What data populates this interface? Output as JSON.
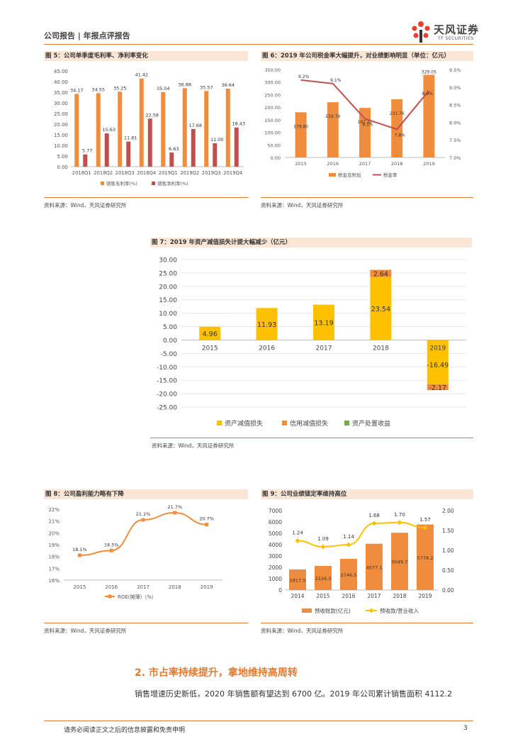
{
  "header": {
    "left": "公司报告 | 年报点评报告",
    "brand_cn": "天风证券",
    "brand_en": "TF SECURITIES"
  },
  "fig5": {
    "title": "图 5：公司单季度毛利率、净利率变化",
    "source": "资料来源：Wind，天风证券研究所",
    "chart_data": {
      "type": "bar",
      "categories": [
        "2018Q1",
        "2018Q2",
        "2018Q3",
        "2018Q4",
        "2019Q1",
        "2019Q2",
        "2019Q3",
        "2019Q4"
      ],
      "series": [
        {
          "name": "销售毛利率(%)",
          "values": [
            34.17,
            34.55,
            35.25,
            41.42,
            35.04,
            36.88,
            35.57,
            36.64
          ],
          "color": "#f08c3c"
        },
        {
          "name": "销售净利率(%)",
          "values": [
            5.77,
            15.63,
            11.81,
            22.58,
            6.63,
            17.68,
            11.0,
            18.43
          ],
          "color": "#c0504d"
        }
      ],
      "labels": [
        [
          "34.17",
          "34.55",
          "35.25",
          "41.42",
          "35.04",
          "36.88",
          "35.57",
          "36.64"
        ],
        [
          "5.77",
          "15.63",
          "11.81",
          "22.58",
          "6.63",
          "17.68",
          "11.00",
          "18.43"
        ]
      ],
      "yticks": [
        "0.00",
        "5.00",
        "10.00",
        "15.00",
        "20.00",
        "25.00",
        "30.00",
        "35.00",
        "40.00",
        "45.00"
      ],
      "ylim": [
        0,
        45
      ]
    }
  },
  "fig6": {
    "title": "图 6：2019 年公司税金率大幅提升，对业绩影响明显（单位：亿元）",
    "source": "资料来源：Wind，天风证券研究所",
    "chart_data": {
      "type": "bar",
      "categories": [
        "2015",
        "2016",
        "2017",
        "2018",
        "2019"
      ],
      "bars": {
        "name": "税金及附加",
        "values": [
          179.8,
          219.79,
          197.22,
          231.76,
          329.05
        ],
        "color": "#f08c3c"
      },
      "bar_labels": [
        "179.80",
        "219.79",
        "197.22",
        "231.76",
        "329.05"
      ],
      "line": {
        "name": "税金率",
        "values": [
          9.2,
          9.1,
          8.1,
          7.8,
          8.9
        ],
        "color": "#c0504d"
      },
      "line_labels": [
        "9.2%",
        "9.1%",
        "8.1%",
        "7.8%",
        "8.9%"
      ],
      "yticks": [
        "0.00",
        "50.00",
        "100.00",
        "150.00",
        "200.00",
        "250.00",
        "300.00",
        "350.00"
      ],
      "ylim": [
        0,
        350
      ],
      "y2ticks": [
        "7.0%",
        "7.5%",
        "8.0%",
        "8.5%",
        "9.0%",
        "9.5%"
      ],
      "y2lim": [
        7.0,
        9.5
      ]
    }
  },
  "fig7": {
    "title": "图 7：2019 年资产减值损失计提大幅减少（亿元）",
    "source": "资料来源：Wind，天风证券研究所",
    "chart_data": {
      "type": "bar",
      "categories": [
        "2015",
        "2016",
        "2017",
        "2018",
        "2019"
      ],
      "series": [
        {
          "name": "资产减值损失",
          "values": [
            4.96,
            11.93,
            13.19,
            23.54,
            -16.49
          ],
          "color": "#ffc000"
        },
        {
          "name": "信用减值损失",
          "values": [
            0,
            0,
            0,
            2.64,
            -2.17
          ],
          "color": "#f08c3c"
        },
        {
          "name": "资产处置收益",
          "values": [
            0,
            0,
            0,
            0,
            0
          ],
          "color": "#70ad47"
        }
      ],
      "labels_s1": [
        "4.96",
        "11.93",
        "13.19",
        "23.54",
        "-16.49"
      ],
      "labels_s2": [
        "",
        "",
        "",
        "2.64",
        "-2.17"
      ],
      "yticks": [
        "-25.00",
        "-20.00",
        "-15.00",
        "-10.00",
        "-5.00",
        "0.00",
        "5.00",
        "10.00",
        "15.00",
        "20.00",
        "25.00",
        "30.00"
      ],
      "ylim": [
        -25,
        30
      ]
    }
  },
  "fig8": {
    "title": "图 8：公司盈利能力略有下降",
    "source": "资料来源：Wind，天风证券研究所",
    "chart_data": {
      "type": "line",
      "categories": [
        "2015",
        "2016",
        "2017",
        "2018",
        "2019"
      ],
      "series": [
        {
          "name": "ROE(摊薄)（%）",
          "values": [
            18.1,
            18.5,
            21.1,
            21.7,
            20.7
          ],
          "color": "#f08c3c"
        }
      ],
      "labels": [
        "18.1%",
        "18.5%",
        "21.1%",
        "21.7%",
        "20.7%"
      ],
      "yticks": [
        "16%",
        "17%",
        "18%",
        "19%",
        "20%",
        "21%",
        "22%"
      ],
      "ylim": [
        16,
        22
      ]
    }
  },
  "fig9": {
    "title": "图 9：公司业绩锁定率维持高位",
    "source": "资料来源：Wind，天风证券研究所",
    "chart_data": {
      "type": "bar",
      "categories": [
        "2014",
        "2015",
        "2016",
        "2017",
        "2018",
        "2019"
      ],
      "bars": {
        "name": "预收账款(亿元)",
        "values": [
          1817.5,
          2126.3,
          2746.5,
          4077.1,
          5049.7,
          5778.2
        ],
        "color": "#f08c3c"
      },
      "bar_labels": [
        "1817.5",
        "2126.3",
        "2746.5",
        "4077.1",
        "5049.7",
        "5778.2"
      ],
      "line": {
        "name": "预收款/营业收入",
        "values": [
          1.24,
          1.09,
          1.14,
          1.68,
          1.7,
          1.57
        ],
        "color": "#ffc000"
      },
      "line_labels": [
        "1.24",
        "1.09",
        "1.14",
        "1.68",
        "1.70",
        "1.57"
      ],
      "yticks": [
        "0",
        "1000",
        "2000",
        "3000",
        "4000",
        "5000",
        "6000",
        "7000"
      ],
      "ylim": [
        0,
        7000
      ],
      "y2ticks": [
        "0.00",
        "0.50",
        "1.00",
        "1.50",
        "2.00"
      ],
      "y2lim": [
        0,
        2
      ]
    }
  },
  "section": {
    "heading": "2. 市占率持续提升，拿地维持高周转",
    "body": "销售增速历史新低，2020 年销售额有望达到 6700 亿。2019 年公司累计销售面积 4112.2"
  },
  "footer": {
    "disclaimer": "请务必阅读正文之后的信息披露和免责申明",
    "page": "3"
  }
}
